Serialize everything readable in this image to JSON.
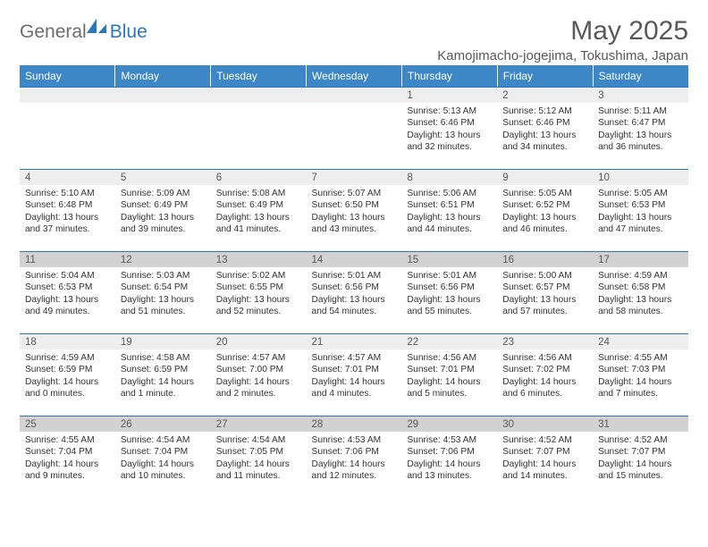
{
  "logo": {
    "text1": "General",
    "text2": "Blue"
  },
  "title": "May 2025",
  "location": "Kamojimacho-jogejima, Tokushima, Japan",
  "day_headers": [
    "Sunday",
    "Monday",
    "Tuesday",
    "Wednesday",
    "Thursday",
    "Friday",
    "Saturday"
  ],
  "colors": {
    "header_bg": "#3d87c7",
    "header_text": "#ffffff",
    "rule": "#2a77bb",
    "daynum_bg": "#eeeeee",
    "daynum_bg_shaded": "#d2d2d2",
    "text": "#595959"
  },
  "weeks": [
    [
      {
        "empty": true
      },
      {
        "empty": true
      },
      {
        "empty": true
      },
      {
        "empty": true
      },
      {
        "day": "1",
        "sunrise": "5:13 AM",
        "sunset": "6:46 PM",
        "daylight": "13 hours and 32 minutes."
      },
      {
        "day": "2",
        "sunrise": "5:12 AM",
        "sunset": "6:46 PM",
        "daylight": "13 hours and 34 minutes."
      },
      {
        "day": "3",
        "sunrise": "5:11 AM",
        "sunset": "6:47 PM",
        "daylight": "13 hours and 36 minutes."
      }
    ],
    [
      {
        "day": "4",
        "sunrise": "5:10 AM",
        "sunset": "6:48 PM",
        "daylight": "13 hours and 37 minutes."
      },
      {
        "day": "5",
        "sunrise": "5:09 AM",
        "sunset": "6:49 PM",
        "daylight": "13 hours and 39 minutes."
      },
      {
        "day": "6",
        "sunrise": "5:08 AM",
        "sunset": "6:49 PM",
        "daylight": "13 hours and 41 minutes."
      },
      {
        "day": "7",
        "sunrise": "5:07 AM",
        "sunset": "6:50 PM",
        "daylight": "13 hours and 43 minutes."
      },
      {
        "day": "8",
        "sunrise": "5:06 AM",
        "sunset": "6:51 PM",
        "daylight": "13 hours and 44 minutes."
      },
      {
        "day": "9",
        "sunrise": "5:05 AM",
        "sunset": "6:52 PM",
        "daylight": "13 hours and 46 minutes."
      },
      {
        "day": "10",
        "sunrise": "5:05 AM",
        "sunset": "6:53 PM",
        "daylight": "13 hours and 47 minutes."
      }
    ],
    [
      {
        "day": "11",
        "shaded": true,
        "sunrise": "5:04 AM",
        "sunset": "6:53 PM",
        "daylight": "13 hours and 49 minutes."
      },
      {
        "day": "12",
        "shaded": true,
        "sunrise": "5:03 AM",
        "sunset": "6:54 PM",
        "daylight": "13 hours and 51 minutes."
      },
      {
        "day": "13",
        "shaded": true,
        "sunrise": "5:02 AM",
        "sunset": "6:55 PM",
        "daylight": "13 hours and 52 minutes."
      },
      {
        "day": "14",
        "shaded": true,
        "sunrise": "5:01 AM",
        "sunset": "6:56 PM",
        "daylight": "13 hours and 54 minutes."
      },
      {
        "day": "15",
        "shaded": true,
        "sunrise": "5:01 AM",
        "sunset": "6:56 PM",
        "daylight": "13 hours and 55 minutes."
      },
      {
        "day": "16",
        "shaded": true,
        "sunrise": "5:00 AM",
        "sunset": "6:57 PM",
        "daylight": "13 hours and 57 minutes."
      },
      {
        "day": "17",
        "shaded": true,
        "sunrise": "4:59 AM",
        "sunset": "6:58 PM",
        "daylight": "13 hours and 58 minutes."
      }
    ],
    [
      {
        "day": "18",
        "sunrise": "4:59 AM",
        "sunset": "6:59 PM",
        "daylight": "14 hours and 0 minutes."
      },
      {
        "day": "19",
        "sunrise": "4:58 AM",
        "sunset": "6:59 PM",
        "daylight": "14 hours and 1 minute."
      },
      {
        "day": "20",
        "sunrise": "4:57 AM",
        "sunset": "7:00 PM",
        "daylight": "14 hours and 2 minutes."
      },
      {
        "day": "21",
        "sunrise": "4:57 AM",
        "sunset": "7:01 PM",
        "daylight": "14 hours and 4 minutes."
      },
      {
        "day": "22",
        "sunrise": "4:56 AM",
        "sunset": "7:01 PM",
        "daylight": "14 hours and 5 minutes."
      },
      {
        "day": "23",
        "sunrise": "4:56 AM",
        "sunset": "7:02 PM",
        "daylight": "14 hours and 6 minutes."
      },
      {
        "day": "24",
        "sunrise": "4:55 AM",
        "sunset": "7:03 PM",
        "daylight": "14 hours and 7 minutes."
      }
    ],
    [
      {
        "day": "25",
        "shaded": true,
        "sunrise": "4:55 AM",
        "sunset": "7:04 PM",
        "daylight": "14 hours and 9 minutes."
      },
      {
        "day": "26",
        "shaded": true,
        "sunrise": "4:54 AM",
        "sunset": "7:04 PM",
        "daylight": "14 hours and 10 minutes."
      },
      {
        "day": "27",
        "shaded": true,
        "sunrise": "4:54 AM",
        "sunset": "7:05 PM",
        "daylight": "14 hours and 11 minutes."
      },
      {
        "day": "28",
        "shaded": true,
        "sunrise": "4:53 AM",
        "sunset": "7:06 PM",
        "daylight": "14 hours and 12 minutes."
      },
      {
        "day": "29",
        "shaded": true,
        "sunrise": "4:53 AM",
        "sunset": "7:06 PM",
        "daylight": "14 hours and 13 minutes."
      },
      {
        "day": "30",
        "shaded": true,
        "sunrise": "4:52 AM",
        "sunset": "7:07 PM",
        "daylight": "14 hours and 14 minutes."
      },
      {
        "day": "31",
        "shaded": true,
        "sunrise": "4:52 AM",
        "sunset": "7:07 PM",
        "daylight": "14 hours and 15 minutes."
      }
    ]
  ],
  "labels": {
    "sunrise": "Sunrise: ",
    "sunset": "Sunset: ",
    "daylight": "Daylight: "
  }
}
